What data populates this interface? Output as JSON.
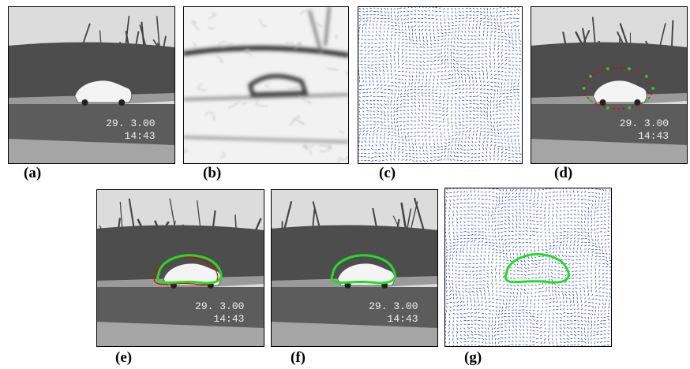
{
  "panels": [
    {
      "label": "(a)",
      "stamp": [
        "29. 3.00",
        "14:43"
      ]
    },
    {
      "label": "(b)"
    },
    {
      "label": "(c)"
    },
    {
      "label": "(d)",
      "stamp": [
        "29. 3.00",
        "14:43"
      ]
    },
    {
      "label": "(e)",
      "stamp": [
        "29. 3.00",
        "14:43"
      ]
    },
    {
      "label": "(f)",
      "stamp": [
        "29. 3.00",
        "14:43"
      ]
    },
    {
      "label": "(g)"
    }
  ]
}
